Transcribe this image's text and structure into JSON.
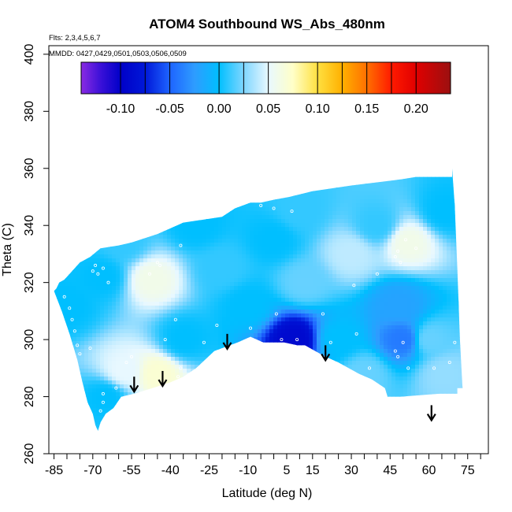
{
  "chart_data": {
    "type": "heatmap",
    "title": "ATOM4 Southbound WS_Abs_480nm",
    "notes": [
      "Flts: 2,3,4,5,6,7",
      "MMDD: 0427,0429,0501,0503,0506,0509"
    ],
    "xlabel": "Latitude (deg N)",
    "ylabel": "Theta (C)",
    "xlim": [
      -87,
      83
    ],
    "ylim": [
      260,
      403
    ],
    "x_tick_labels": [
      "-85",
      "-70",
      "-55",
      "-40",
      "-25",
      "-10",
      "5",
      "15",
      "30",
      "45",
      "60",
      "75"
    ],
    "x_tick_values": [
      -85,
      -70,
      -55,
      -40,
      -25,
      -10,
      5,
      15,
      30,
      45,
      60,
      75
    ],
    "x_minor_ticks": [
      -85,
      -80,
      -75,
      -70,
      -65,
      -60,
      -55,
      -50,
      -45,
      -40,
      -35,
      -30,
      -25,
      -20,
      -15,
      -10,
      -5,
      0,
      5,
      10,
      15,
      20,
      25,
      30,
      35,
      40,
      45,
      50,
      55,
      60,
      65,
      70,
      75,
      80
    ],
    "y_tick_labels": [
      "260",
      "280",
      "300",
      "320",
      "340",
      "360",
      "380",
      "400"
    ],
    "y_tick_values": [
      260,
      280,
      300,
      320,
      340,
      360,
      380,
      400
    ],
    "colorbar": {
      "range": [
        -0.14,
        0.235
      ],
      "tick_labels": [
        "-0.10",
        "-0.05",
        "0.00",
        "0.05",
        "0.10",
        "0.15",
        "0.20"
      ],
      "tick_values": [
        -0.1,
        -0.05,
        0.0,
        0.05,
        0.1,
        0.15,
        0.2
      ],
      "stops": [
        {
          "v": -0.14,
          "color": "#8a2be2"
        },
        {
          "v": -0.12,
          "color": "#3a10d8"
        },
        {
          "v": -0.1,
          "color": "#0000c8"
        },
        {
          "v": -0.075,
          "color": "#0018d8"
        },
        {
          "v": -0.05,
          "color": "#1e64ff"
        },
        {
          "v": -0.025,
          "color": "#2e9cff"
        },
        {
          "v": 0.0,
          "color": "#00bfff"
        },
        {
          "v": 0.025,
          "color": "#7fd6ff"
        },
        {
          "v": 0.05,
          "color": "#e8f8ff"
        },
        {
          "v": 0.075,
          "color": "#ffffc8"
        },
        {
          "v": 0.1,
          "color": "#ffe040"
        },
        {
          "v": 0.125,
          "color": "#ffb000"
        },
        {
          "v": 0.15,
          "color": "#ff7000"
        },
        {
          "v": 0.175,
          "color": "#ff1a00"
        },
        {
          "v": 0.2,
          "color": "#e00000"
        },
        {
          "v": 0.235,
          "color": "#9b1010"
        }
      ]
    },
    "data_region_boundary": [
      [
        -85,
        317
      ],
      [
        -84,
        318
      ],
      [
        -83,
        320
      ],
      [
        -81,
        321
      ],
      [
        -79,
        323
      ],
      [
        -75,
        327
      ],
      [
        -71,
        329
      ],
      [
        -67,
        332
      ],
      [
        -60,
        333
      ],
      [
        -55,
        334
      ],
      [
        -45,
        337
      ],
      [
        -35,
        341
      ],
      [
        -20,
        343
      ],
      [
        -15,
        346
      ],
      [
        -9,
        348
      ],
      [
        -5,
        348
      ],
      [
        0,
        349
      ],
      [
        6,
        350
      ],
      [
        15,
        352
      ],
      [
        30,
        354
      ],
      [
        48,
        356
      ],
      [
        55,
        357
      ],
      [
        69,
        357
      ],
      [
        69,
        360
      ],
      [
        70,
        347
      ],
      [
        71,
        325
      ],
      [
        72,
        300
      ],
      [
        73,
        283
      ],
      [
        71,
        283
      ],
      [
        71,
        281
      ],
      [
        64,
        281
      ],
      [
        49,
        280
      ],
      [
        44,
        280
      ],
      [
        43,
        283
      ],
      [
        38,
        286
      ],
      [
        33,
        288
      ],
      [
        25,
        292
      ],
      [
        20,
        294
      ],
      [
        16,
        296
      ],
      [
        12,
        298
      ],
      [
        9,
        298
      ],
      [
        4,
        299
      ],
      [
        0,
        299
      ],
      [
        -4,
        299
      ],
      [
        -9,
        301
      ],
      [
        -14,
        299
      ],
      [
        -23,
        296
      ],
      [
        -30,
        290
      ],
      [
        -35,
        287
      ],
      [
        -40,
        285
      ],
      [
        -47,
        283
      ],
      [
        -54,
        281
      ],
      [
        -59,
        280
      ],
      [
        -62,
        276
      ],
      [
        -65,
        274
      ],
      [
        -67,
        271
      ],
      [
        -68,
        268
      ],
      [
        -69,
        270
      ],
      [
        -70,
        274
      ],
      [
        -72,
        278
      ],
      [
        -74,
        285
      ],
      [
        -76,
        293
      ],
      [
        -79,
        302
      ],
      [
        -82,
        310
      ],
      [
        -85,
        317
      ]
    ],
    "field_samples": [
      {
        "x": -80,
        "y": 312,
        "v": 0.0
      },
      {
        "x": -66,
        "y": 322,
        "v": 0.0
      },
      {
        "x": -58,
        "y": 334,
        "v": 0.01
      },
      {
        "x": -47,
        "y": 321,
        "v": 0.06
      },
      {
        "x": -30,
        "y": 340,
        "v": 0.0
      },
      {
        "x": -20,
        "y": 325,
        "v": 0.01
      },
      {
        "x": -58,
        "y": 289,
        "v": 0.05
      },
      {
        "x": -45,
        "y": 288,
        "v": 0.07
      },
      {
        "x": -65,
        "y": 280,
        "v": 0.0
      },
      {
        "x": -35,
        "y": 300,
        "v": 0.0
      },
      {
        "x": -10,
        "y": 312,
        "v": 0.0
      },
      {
        "x": 0,
        "y": 335,
        "v": 0.0
      },
      {
        "x": 10,
        "y": 345,
        "v": 0.01
      },
      {
        "x": 12,
        "y": 320,
        "v": 0.02
      },
      {
        "x": 8,
        "y": 300,
        "v": -0.09
      },
      {
        "x": 25,
        "y": 300,
        "v": 0.0
      },
      {
        "x": 30,
        "y": 330,
        "v": 0.04
      },
      {
        "x": 40,
        "y": 340,
        "v": 0.01
      },
      {
        "x": 52,
        "y": 334,
        "v": 0.06
      },
      {
        "x": 50,
        "y": 300,
        "v": -0.04
      },
      {
        "x": 48,
        "y": 312,
        "v": -0.02
      },
      {
        "x": 60,
        "y": 300,
        "v": 0.02
      },
      {
        "x": 66,
        "y": 345,
        "v": 0.0
      },
      {
        "x": 66,
        "y": 288,
        "v": 0.03
      },
      {
        "x": 35,
        "y": 288,
        "v": 0.02
      }
    ],
    "sample_points": [
      [
        -81,
        315
      ],
      [
        -79,
        311
      ],
      [
        -78,
        307
      ],
      [
        -77,
        303
      ],
      [
        -76,
        298
      ],
      [
        -75,
        295
      ],
      [
        -71,
        297
      ],
      [
        -70,
        324
      ],
      [
        -69,
        326
      ],
      [
        -68,
        323
      ],
      [
        -66,
        325
      ],
      [
        -64,
        320
      ],
      [
        -66,
        281
      ],
      [
        -66,
        278
      ],
      [
        -67,
        275
      ],
      [
        -65,
        272
      ],
      [
        -61,
        283
      ],
      [
        -57,
        292
      ],
      [
        -55,
        294
      ],
      [
        -48,
        323
      ],
      [
        -45,
        327
      ],
      [
        -44,
        326
      ],
      [
        -36,
        333
      ],
      [
        -38,
        307
      ],
      [
        -42,
        300
      ],
      [
        -36,
        290
      ],
      [
        -37,
        287
      ],
      [
        -27,
        299
      ],
      [
        -22,
        305
      ],
      [
        -9,
        304
      ],
      [
        -5,
        347
      ],
      [
        0,
        346
      ],
      [
        1,
        309
      ],
      [
        3,
        300
      ],
      [
        7,
        345
      ],
      [
        9,
        300
      ],
      [
        19,
        309
      ],
      [
        22,
        299
      ],
      [
        26,
        289
      ],
      [
        31,
        319
      ],
      [
        32,
        302
      ],
      [
        37,
        290
      ],
      [
        40,
        323
      ],
      [
        47,
        329
      ],
      [
        48,
        331
      ],
      [
        49,
        327
      ],
      [
        51,
        335
      ],
      [
        55,
        332
      ],
      [
        50,
        299
      ],
      [
        47,
        296
      ],
      [
        48,
        294
      ],
      [
        52,
        290
      ],
      [
        62,
        290
      ],
      [
        68,
        292
      ],
      [
        70,
        299
      ]
    ],
    "arrows_x": [
      -54,
      -43,
      -18,
      20,
      61
    ],
    "arrows_from_to": [
      [
        -54,
        287,
        282
      ],
      [
        -43,
        289,
        284
      ],
      [
        -18,
        302,
        297
      ],
      [
        20,
        298,
        293
      ],
      [
        61,
        277,
        272
      ]
    ]
  }
}
